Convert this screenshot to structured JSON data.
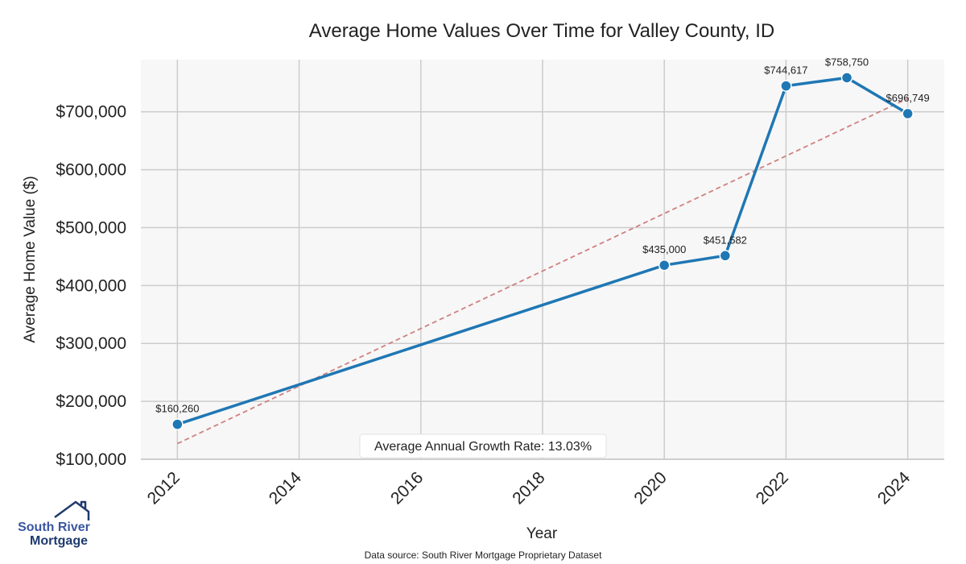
{
  "chart_data": {
    "type": "line",
    "title": "Average Home Values Over Time for Valley County, ID",
    "xlabel": "Year",
    "ylabel": "Average Home Value ($)",
    "x": [
      2012,
      2020,
      2021,
      2022,
      2023,
      2024
    ],
    "series": [
      {
        "values": [
          160260,
          435000,
          451582,
          744617,
          758750,
          696749
        ],
        "color": "#1f77b4"
      }
    ],
    "data_labels": [
      "$160,260",
      "$435,000",
      "$451,582",
      "$744,617",
      "$758,750",
      "$696,749"
    ],
    "trend_line": {
      "x": [
        2012,
        2024
      ],
      "y": [
        127000,
        723000
      ],
      "color": "#d08080",
      "style": "dashed"
    },
    "xticks": [
      "2012",
      "2014",
      "2016",
      "2018",
      "2020",
      "2022",
      "2024"
    ],
    "yticks": [
      "$100,000",
      "$200,000",
      "$300,000",
      "$400,000",
      "$500,000",
      "$600,000",
      "$700,000"
    ],
    "xlim": [
      2011.4,
      2024.6
    ],
    "ylim": [
      100000,
      790000
    ],
    "grid": true,
    "annotation": "Average Annual Growth Rate: 13.03%"
  },
  "footer": {
    "source": "Data source: South River Mortgage Proprietary Dataset"
  },
  "logo": {
    "line1": "South River",
    "line2": "Mortgage",
    "color": "#1f3a6e"
  }
}
